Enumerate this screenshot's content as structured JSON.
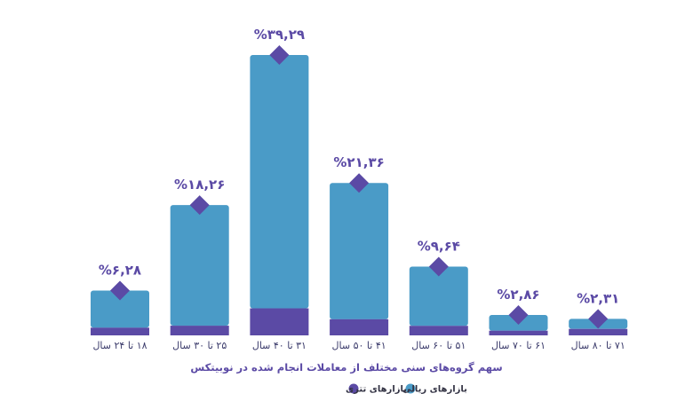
{
  "chart_data": {
    "type": "bar",
    "title": "سهم گروه‌های سنی مختلف از معاملات انجام شده در نوبیتکس",
    "categories": [
      "۱۸ تا ۲۴ سال",
      "۲۵ تا ۳۰ سال",
      "۳۱ تا ۴۰ سال",
      "۴۱ تا ۵۰ سال",
      "۵۱ تا ۶۰ سال",
      "۶۱ تا ۷۰ سال",
      "۷۱ تا ۸۰ سال"
    ],
    "value_labels": [
      "%۶,۲۸",
      "%۱۸,۲۶",
      "%۳۹,۲۹",
      "%۲۱,۳۶",
      "%۹,۶۴",
      "%۲,۸۶",
      "%۲,۳۱"
    ],
    "values": [
      6.28,
      18.26,
      39.29,
      21.36,
      9.64,
      2.86,
      2.31
    ],
    "series": [
      {
        "name": "بازارهای ریالی",
        "color": "#4a9bc7",
        "values": [
          5.2,
          16.9,
          35.5,
          19.1,
          8.3,
          2.2,
          1.4
        ]
      },
      {
        "name": "بازارهای تتری",
        "color": "#5b4aa5",
        "values": [
          1.08,
          1.36,
          3.79,
          2.26,
          1.34,
          0.66,
          0.91
        ]
      }
    ],
    "ylim": [
      0,
      40
    ],
    "stacked": true,
    "grid": false,
    "legend_position": "bottom-center"
  }
}
